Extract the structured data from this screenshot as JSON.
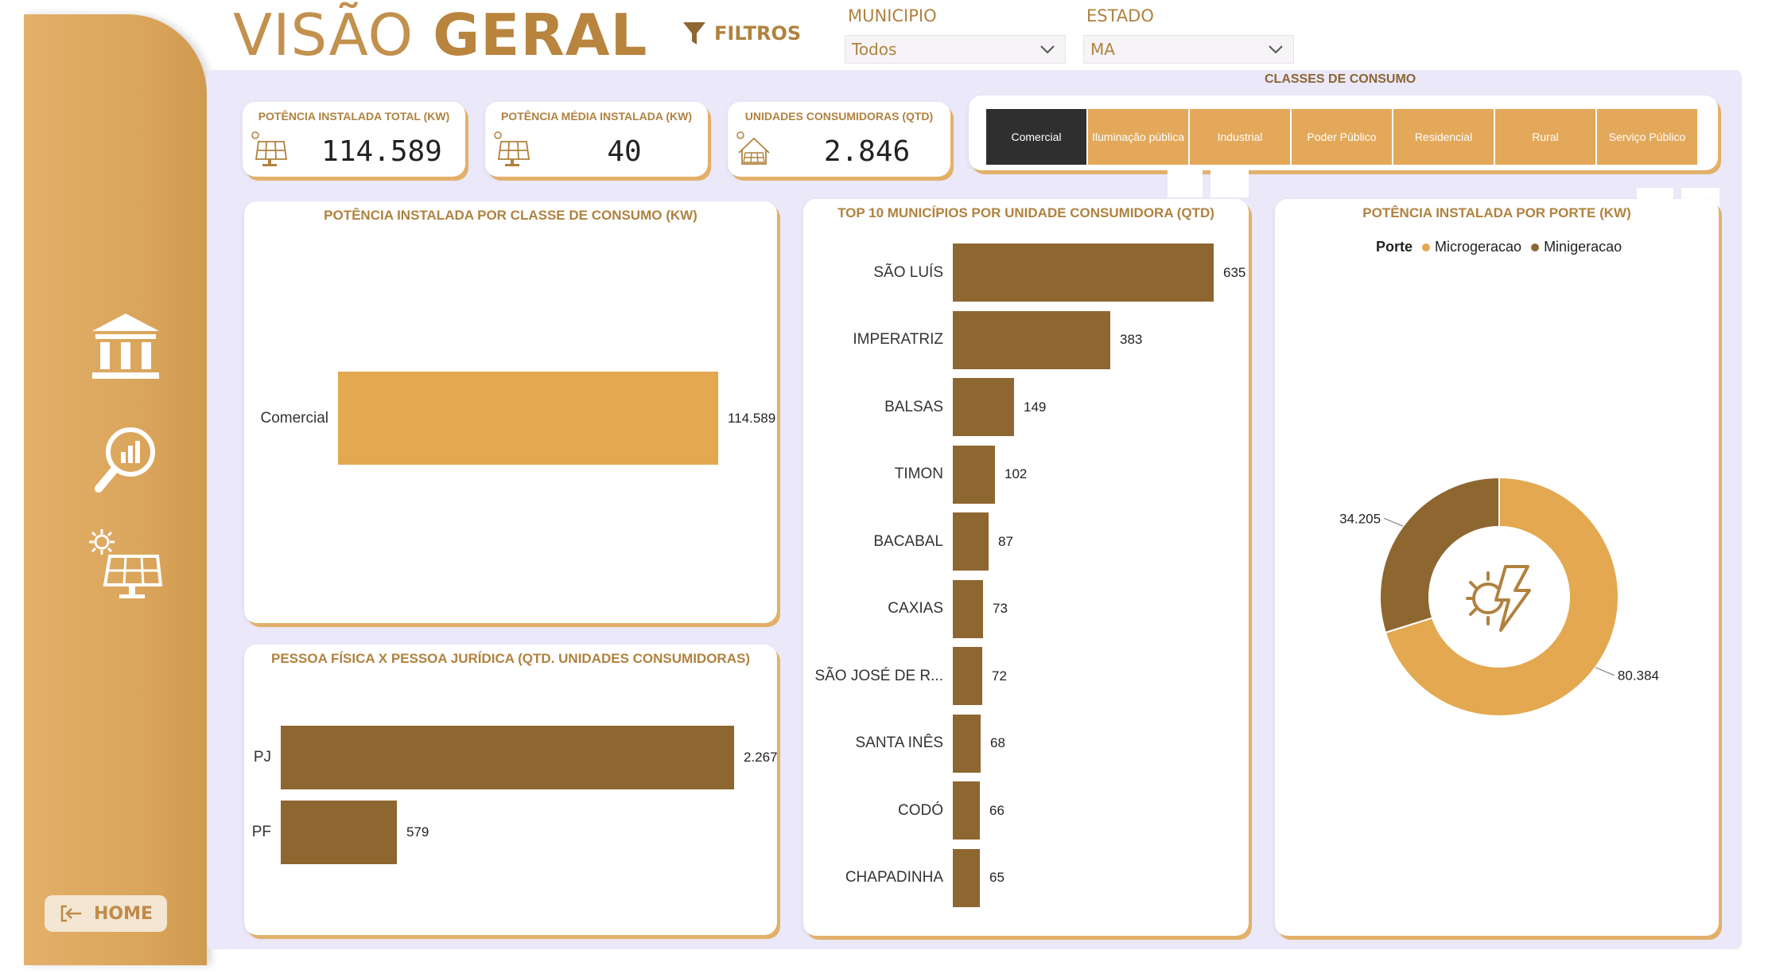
{
  "header": {
    "title_light": "VISÃO",
    "title_bold": "GERAL",
    "filters_label": "FILTROS"
  },
  "slicers": {
    "municipio": {
      "label": "MUNICIPIO",
      "value": "Todos"
    },
    "estado": {
      "label": "ESTADO",
      "value": "MA"
    }
  },
  "sidebar": {
    "home_label": "HOME",
    "icons": [
      "institution-icon",
      "analytics-search-icon",
      "solar-panel-icon"
    ]
  },
  "kpis": [
    {
      "title": "POTÊNCIA INSTALADA TOTAL (KW)",
      "value": "114.589",
      "icon": "solar-panel-icon"
    },
    {
      "title": "POTÊNCIA MÉDIA INSTALADA (KW)",
      "value": "40",
      "icon": "solar-panel-icon"
    },
    {
      "title": "UNIDADES CONSUMIDORAS (QTD)",
      "value": "2.846",
      "icon": "solar-house-icon"
    }
  ],
  "classes": {
    "title": "CLASSES DE CONSUMO",
    "items": [
      "Comercial",
      "Iluminação pública",
      "Industrial",
      "Poder Público",
      "Residencial",
      "Rural",
      "Serviço Público"
    ],
    "selected": "Comercial"
  },
  "colors": {
    "gold": "#e3a850",
    "brown": "#8e6630",
    "dark": "#2f2f2f"
  },
  "charts": {
    "potencia_classe": {
      "title": "POTÊNCIA INSTALADA POR CLASSE DE CONSUMO (KW)",
      "categories": [
        "Comercial"
      ],
      "values": [
        114589
      ],
      "labels": [
        "114.589"
      ]
    },
    "top10": {
      "title": "TOP 10 MUNICÍPIOS POR UNIDADE CONSUMIDORA (QTD)",
      "categories": [
        "SÃO LUÍS",
        "IMPERATRIZ",
        "BALSAS",
        "TIMON",
        "BACABAL",
        "CAXIAS",
        "SÃO JOSÉ DE R...",
        "SANTA INÊS",
        "CODÓ",
        "CHAPADINHA"
      ],
      "values": [
        635,
        383,
        149,
        102,
        87,
        73,
        72,
        68,
        66,
        65
      ],
      "labels": [
        "635",
        "383",
        "149",
        "102",
        "87",
        "73",
        "72",
        "68",
        "66",
        "65"
      ]
    },
    "pf_pj": {
      "title": "PESSOA FÍSICA X PESSOA JURÍDICA (QTD. UNIDADES CONSUMIDORAS)",
      "categories": [
        "PJ",
        "PF"
      ],
      "values": [
        2267,
        579
      ],
      "labels": [
        "2.267",
        "579"
      ]
    },
    "porte": {
      "title": "POTÊNCIA INSTALADA POR PORTE (KW)",
      "legend_title": "Porte",
      "series": [
        {
          "name": "Microgeracao",
          "value": 80384,
          "label": "80.384"
        },
        {
          "name": "Minigeracao",
          "value": 34205,
          "label": "34.205"
        }
      ]
    }
  },
  "chart_data": [
    {
      "type": "bar",
      "title": "POTÊNCIA INSTALADA POR CLASSE DE CONSUMO (KW)",
      "categories": [
        "Comercial"
      ],
      "values": [
        114589
      ]
    },
    {
      "type": "bar",
      "title": "TOP 10 MUNICÍPIOS POR UNIDADE CONSUMIDORA (QTD)",
      "categories": [
        "SÃO LUÍS",
        "IMPERATRIZ",
        "BALSAS",
        "TIMON",
        "BACABAL",
        "CAXIAS",
        "SÃO JOSÉ DE R...",
        "SANTA INÊS",
        "CODÓ",
        "CHAPADINHA"
      ],
      "values": [
        635,
        383,
        149,
        102,
        87,
        73,
        72,
        68,
        66,
        65
      ]
    },
    {
      "type": "bar",
      "title": "PESSOA FÍSICA X PESSOA JURÍDICA (QTD. UNIDADES CONSUMIDORAS)",
      "categories": [
        "PJ",
        "PF"
      ],
      "values": [
        2267,
        579
      ]
    },
    {
      "type": "pie",
      "title": "POTÊNCIA INSTALADA POR PORTE (KW)",
      "categories": [
        "Microgeracao",
        "Minigeracao"
      ],
      "values": [
        80384,
        34205
      ],
      "legend": "top"
    }
  ]
}
